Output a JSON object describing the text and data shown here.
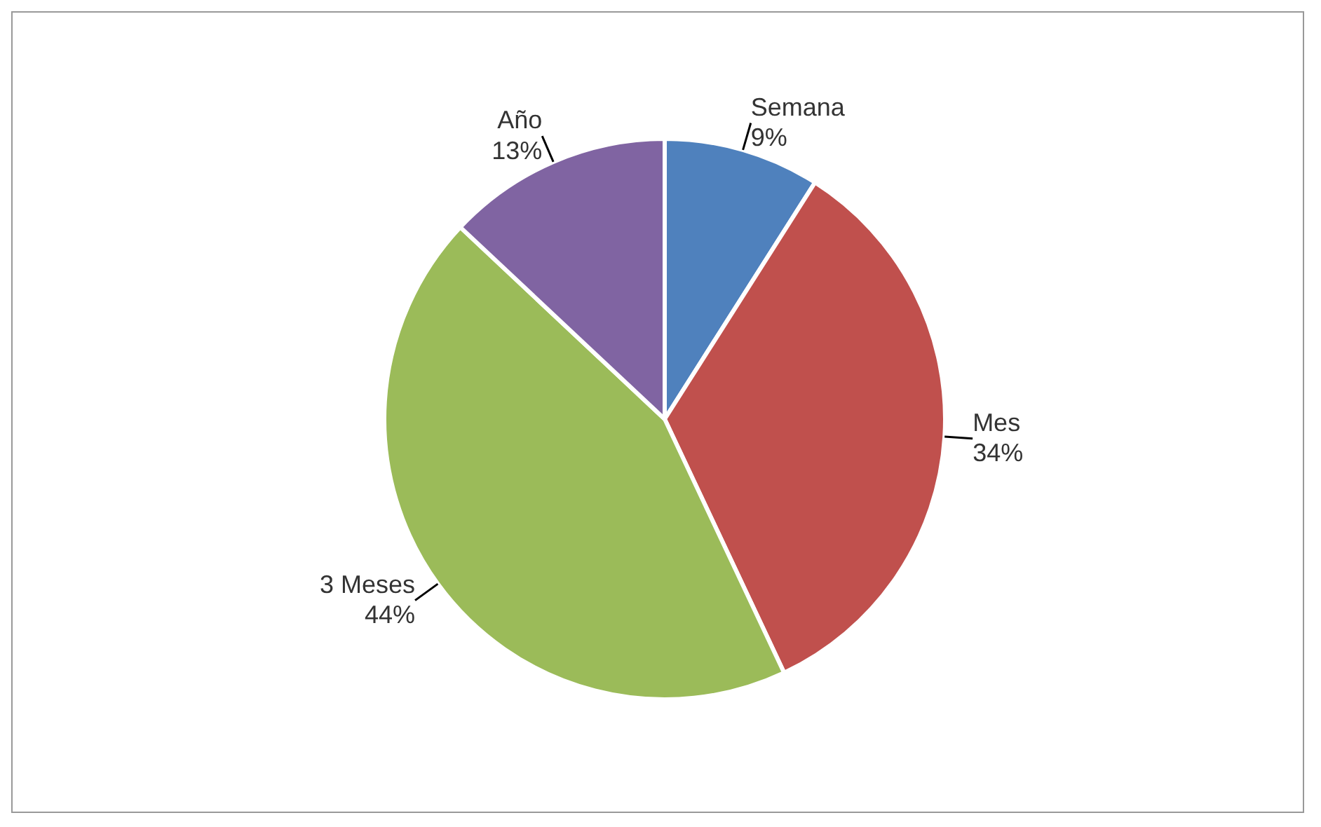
{
  "chart_data": {
    "type": "pie",
    "categories": [
      "Semana",
      "Mes",
      "3 Meses",
      "Año"
    ],
    "values": [
      9,
      34,
      44,
      13
    ],
    "colors": [
      "#4f81bd",
      "#c0504d",
      "#9bbb59",
      "#8064a2"
    ],
    "value_labels": [
      "9%",
      "34%",
      "44%",
      "13%"
    ],
    "legend": false
  }
}
